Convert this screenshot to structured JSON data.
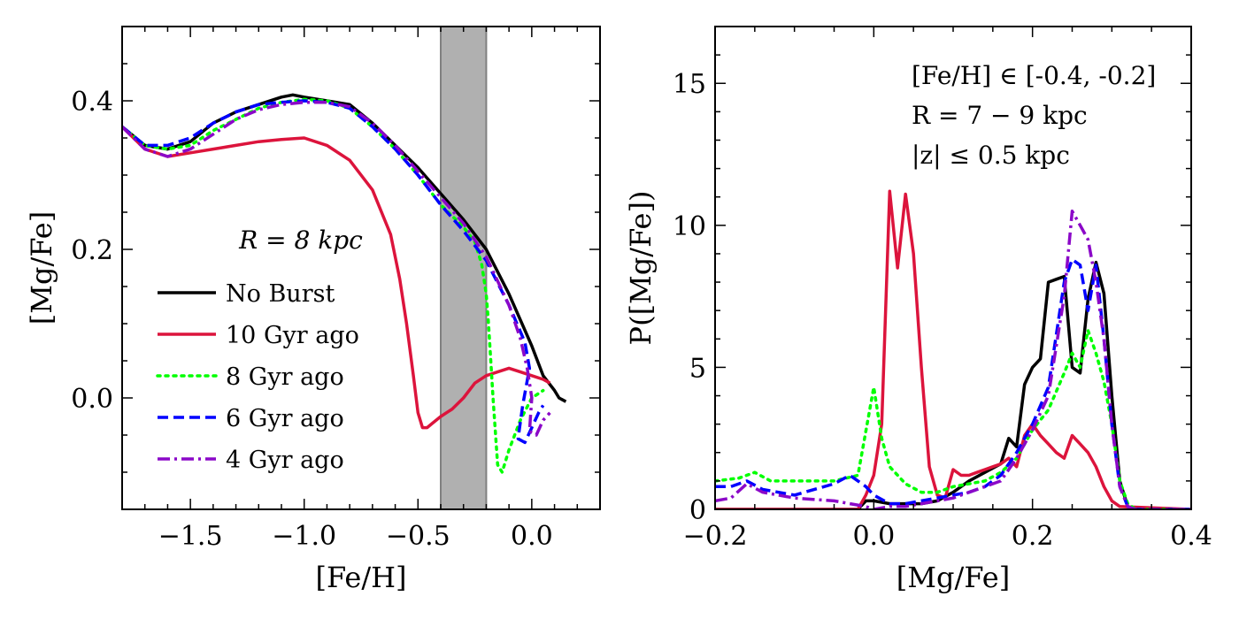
{
  "chart_data": [
    {
      "type": "line",
      "xlabel": "[Fe/H]",
      "ylabel": "[Mg/Fe]",
      "xlim": [
        -1.8,
        0.3
      ],
      "ylim": [
        -0.15,
        0.5
      ],
      "xticks": [
        -1.5,
        -1.0,
        -0.5,
        0.0
      ],
      "xtick_labels": [
        "−1.5",
        "−1.0",
        "−0.5",
        "0.0"
      ],
      "yticks": [
        0.0,
        0.2,
        0.4
      ],
      "ytick_labels": [
        "0.0",
        "0.2",
        "0.4"
      ],
      "shaded_band": [
        -0.4,
        -0.2
      ],
      "annotation": "R = 8 kpc",
      "legend_position": "lower-left",
      "series": [
        {
          "name": "No Burst",
          "color": "#000000",
          "style": "solid",
          "x": [
            -1.8,
            -1.7,
            -1.6,
            -1.5,
            -1.4,
            -1.3,
            -1.2,
            -1.1,
            -1.05,
            -1.0,
            -0.9,
            -0.8,
            -0.7,
            -0.6,
            -0.5,
            -0.4,
            -0.3,
            -0.2,
            -0.1,
            0.0,
            0.05,
            0.1,
            0.12,
            0.15
          ],
          "y": [
            0.365,
            0.34,
            0.335,
            0.345,
            0.37,
            0.385,
            0.395,
            0.405,
            0.408,
            0.405,
            0.4,
            0.395,
            0.37,
            0.34,
            0.31,
            0.275,
            0.24,
            0.2,
            0.14,
            0.07,
            0.03,
            0.01,
            0.0,
            -0.005
          ]
        },
        {
          "name": "10 Gyr ago",
          "color": "#dc143c",
          "style": "solid",
          "x": [
            -1.8,
            -1.7,
            -1.6,
            -1.5,
            -1.4,
            -1.3,
            -1.2,
            -1.1,
            -1.0,
            -0.9,
            -0.8,
            -0.7,
            -0.62,
            -0.58,
            -0.55,
            -0.52,
            -0.5,
            -0.48,
            -0.46,
            -0.44,
            -0.4,
            -0.35,
            -0.3,
            -0.25,
            -0.2,
            -0.15,
            -0.1,
            -0.05,
            0.0,
            0.05,
            0.08
          ],
          "y": [
            0.365,
            0.335,
            0.325,
            0.33,
            0.335,
            0.34,
            0.345,
            0.348,
            0.35,
            0.34,
            0.32,
            0.28,
            0.22,
            0.16,
            0.1,
            0.03,
            -0.02,
            -0.04,
            -0.04,
            -0.035,
            -0.025,
            -0.015,
            0.0,
            0.02,
            0.03,
            0.035,
            0.04,
            0.035,
            0.03,
            0.025,
            0.02
          ]
        },
        {
          "name": "8 Gyr ago",
          "color": "#00ff00",
          "style": "dotted",
          "x": [
            -1.8,
            -1.7,
            -1.6,
            -1.5,
            -1.4,
            -1.3,
            -1.2,
            -1.1,
            -1.0,
            -0.9,
            -0.8,
            -0.7,
            -0.6,
            -0.5,
            -0.4,
            -0.3,
            -0.25,
            -0.22,
            -0.2,
            -0.19,
            -0.17,
            -0.15,
            -0.13,
            -0.1,
            -0.05,
            0.0,
            0.05
          ],
          "y": [
            0.365,
            0.34,
            0.335,
            0.34,
            0.36,
            0.375,
            0.39,
            0.398,
            0.402,
            0.4,
            0.39,
            0.365,
            0.335,
            0.3,
            0.26,
            0.23,
            0.21,
            0.18,
            0.14,
            0.1,
            0.0,
            -0.09,
            -0.1,
            -0.07,
            -0.03,
            0.0,
            0.01
          ]
        },
        {
          "name": "6 Gyr ago",
          "color": "#0000ff",
          "style": "dashed",
          "x": [
            -1.8,
            -1.7,
            -1.6,
            -1.5,
            -1.4,
            -1.3,
            -1.2,
            -1.1,
            -1.0,
            -0.9,
            -0.8,
            -0.7,
            -0.6,
            -0.5,
            -0.4,
            -0.3,
            -0.2,
            -0.1,
            -0.03,
            -0.01,
            -0.04,
            -0.06,
            -0.03,
            0.0,
            0.03,
            0.05
          ],
          "y": [
            0.365,
            0.34,
            0.34,
            0.35,
            0.37,
            0.385,
            0.395,
            0.398,
            0.4,
            0.398,
            0.39,
            0.365,
            0.335,
            0.3,
            0.26,
            0.225,
            0.185,
            0.125,
            0.075,
            0.04,
            -0.01,
            -0.055,
            -0.06,
            -0.04,
            -0.02,
            -0.01
          ]
        },
        {
          "name": "4 Gyr ago",
          "color": "#8b08c8",
          "style": "dashdot",
          "x": [
            -1.8,
            -1.7,
            -1.6,
            -1.5,
            -1.4,
            -1.3,
            -1.2,
            -1.1,
            -1.0,
            -0.9,
            -0.8,
            -0.7,
            -0.6,
            -0.5,
            -0.4,
            -0.3,
            -0.2,
            -0.1,
            -0.05,
            -0.02,
            0.0,
            -0.01,
            0.02,
            0.05,
            0.08
          ],
          "y": [
            0.365,
            0.335,
            0.325,
            0.335,
            0.355,
            0.375,
            0.388,
            0.395,
            0.398,
            0.398,
            0.392,
            0.37,
            0.34,
            0.305,
            0.27,
            0.235,
            0.19,
            0.125,
            0.08,
            0.04,
            0.0,
            -0.045,
            -0.05,
            -0.03,
            -0.02
          ]
        }
      ]
    },
    {
      "type": "line",
      "xlabel": "[Mg/Fe]",
      "ylabel": "P([Mg/Fe])",
      "xlim": [
        -0.2,
        0.4
      ],
      "ylim": [
        0,
        17
      ],
      "xticks": [
        -0.2,
        0.0,
        0.2,
        0.4
      ],
      "xtick_labels": [
        "−0.2",
        "0.0",
        "0.2",
        "0.4"
      ],
      "yticks": [
        0,
        5,
        10,
        15
      ],
      "ytick_labels": [
        "0",
        "5",
        "10",
        "15"
      ],
      "annotations": [
        "[Fe/H] ∈ [-0.4, -0.2]",
        "R = 7 − 9 kpc",
        "|z| ≤ 0.5 kpc"
      ],
      "series": [
        {
          "name": "No Burst",
          "color": "#000000",
          "style": "solid",
          "x": [
            -0.2,
            -0.1,
            -0.02,
            -0.01,
            0.0,
            0.02,
            0.04,
            0.06,
            0.08,
            0.1,
            0.12,
            0.14,
            0.16,
            0.17,
            0.18,
            0.19,
            0.2,
            0.21,
            0.22,
            0.23,
            0.24,
            0.25,
            0.26,
            0.27,
            0.28,
            0.29,
            0.3,
            0.31,
            0.32,
            0.33,
            0.4
          ],
          "y": [
            0,
            0,
            0,
            0.3,
            0.3,
            0.2,
            0.2,
            0.2,
            0.3,
            0.6,
            1.0,
            1.3,
            1.6,
            2.5,
            2.2,
            4.4,
            5.0,
            5.3,
            8.0,
            8.1,
            8.2,
            5.0,
            4.8,
            7.4,
            8.7,
            7.6,
            4.0,
            1.0,
            0.1,
            0,
            0
          ]
        },
        {
          "name": "10 Gyr ago",
          "color": "#dc143c",
          "style": "solid",
          "x": [
            -0.2,
            -0.05,
            -0.02,
            -0.01,
            0.0,
            0.01,
            0.02,
            0.03,
            0.04,
            0.05,
            0.06,
            0.07,
            0.08,
            0.09,
            0.1,
            0.11,
            0.12,
            0.13,
            0.14,
            0.15,
            0.16,
            0.17,
            0.18,
            0.19,
            0.2,
            0.21,
            0.22,
            0.23,
            0.24,
            0.25,
            0.26,
            0.27,
            0.28,
            0.29,
            0.3,
            0.31,
            0.4
          ],
          "y": [
            0,
            0,
            0,
            0.5,
            1.2,
            3.0,
            11.2,
            8.5,
            11.1,
            9.0,
            5.0,
            1.5,
            0.5,
            0.4,
            1.4,
            1.2,
            1.2,
            1.3,
            1.4,
            1.5,
            1.6,
            1.8,
            1.5,
            2.6,
            3.0,
            2.6,
            2.3,
            2.0,
            1.8,
            2.6,
            2.3,
            2.0,
            1.5,
            0.8,
            0.3,
            0.1,
            0
          ]
        },
        {
          "name": "8 Gyr ago",
          "color": "#00ff00",
          "style": "dotted",
          "x": [
            -0.2,
            -0.17,
            -0.15,
            -0.13,
            -0.1,
            -0.05,
            -0.02,
            0.0,
            0.01,
            0.02,
            0.04,
            0.06,
            0.08,
            0.1,
            0.12,
            0.14,
            0.16,
            0.18,
            0.2,
            0.22,
            0.24,
            0.25,
            0.26,
            0.27,
            0.28,
            0.29,
            0.3,
            0.31,
            0.32,
            0.33,
            0.4
          ],
          "y": [
            1.0,
            1.1,
            1.3,
            1.0,
            1.0,
            1.0,
            1.2,
            4.3,
            2.5,
            1.5,
            0.9,
            0.6,
            0.6,
            0.8,
            0.9,
            1.0,
            1.3,
            1.8,
            2.8,
            3.5,
            4.8,
            5.5,
            5.0,
            6.3,
            5.5,
            4.5,
            3.0,
            1.0,
            0.2,
            0,
            0
          ]
        },
        {
          "name": "6 Gyr ago",
          "color": "#0000ff",
          "style": "dashed",
          "x": [
            -0.2,
            -0.18,
            -0.16,
            -0.14,
            -0.12,
            -0.1,
            -0.05,
            -0.03,
            -0.01,
            0.0,
            0.02,
            0.04,
            0.06,
            0.08,
            0.1,
            0.12,
            0.14,
            0.16,
            0.18,
            0.2,
            0.22,
            0.24,
            0.25,
            0.26,
            0.27,
            0.28,
            0.29,
            0.3,
            0.31,
            0.32,
            0.33,
            0.4
          ],
          "y": [
            0.8,
            0.8,
            1.0,
            0.7,
            0.6,
            0.5,
            0.9,
            1.2,
            0.8,
            0.5,
            0.2,
            0.2,
            0.3,
            0.4,
            0.5,
            0.6,
            0.8,
            1.2,
            2.0,
            3.0,
            4.3,
            8.0,
            8.8,
            8.6,
            7.0,
            8.6,
            6.0,
            3.0,
            0.8,
            0.1,
            0,
            0
          ]
        },
        {
          "name": "4 Gyr ago",
          "color": "#8b08c8",
          "style": "dashdot",
          "x": [
            -0.2,
            -0.18,
            -0.16,
            -0.14,
            -0.12,
            -0.1,
            -0.05,
            -0.03,
            -0.01,
            0.0,
            0.02,
            0.04,
            0.06,
            0.08,
            0.1,
            0.12,
            0.14,
            0.16,
            0.18,
            0.2,
            0.22,
            0.24,
            0.25,
            0.26,
            0.27,
            0.28,
            0.29,
            0.3,
            0.31,
            0.32,
            0.33,
            0.4
          ],
          "y": [
            0.3,
            0.4,
            0.9,
            0.6,
            0.5,
            0.4,
            0.3,
            0.2,
            0.1,
            0.0,
            0.1,
            0.1,
            0.2,
            0.3,
            0.4,
            0.6,
            0.8,
            1.0,
            1.8,
            2.8,
            4.0,
            7.5,
            10.5,
            10.0,
            9.5,
            8.0,
            6.0,
            3.0,
            0.8,
            0.1,
            0,
            0
          ]
        }
      ]
    }
  ]
}
